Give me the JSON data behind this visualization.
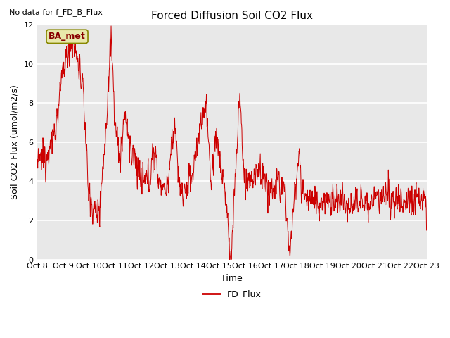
{
  "title": "Forced Diffusion Soil CO2 Flux",
  "ylabel": "Soil CO2 Flux (umol/m2/s)",
  "xlabel": "Time",
  "no_data_text": "No data for f_FD_B_Flux",
  "legend_box_text": "BA_met",
  "legend_entry": "FD_Flux",
  "ylim": [
    0,
    12
  ],
  "tick_labels": [
    "Oct 8",
    "Oct 9",
    "Oct 10",
    "Oct 11",
    "Oct 12",
    "Oct 13",
    "Oct 14",
    "Oct 15",
    "Oct 16",
    "Oct 17",
    "Oct 18",
    "Oct 19",
    "Oct 20",
    "Oct 21",
    "Oct 22",
    "Oct 23"
  ],
  "line_color": "#cc0000",
  "bg_color": "#e8e8e8",
  "title_fontsize": 11,
  "label_fontsize": 9,
  "tick_fontsize": 8,
  "ba_met_facecolor": "#e8e8aa",
  "ba_met_edgecolor": "#888800",
  "ba_met_textcolor": "#880000"
}
